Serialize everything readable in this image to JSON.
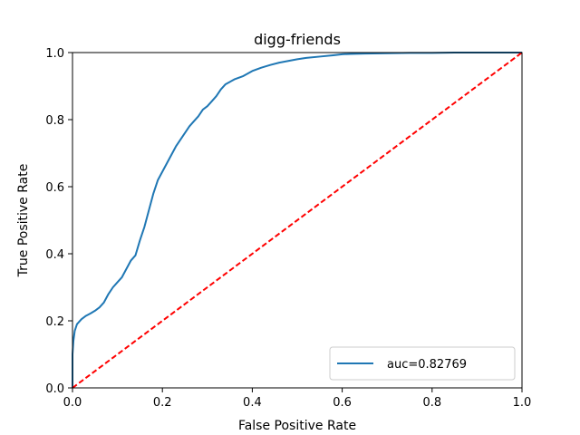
{
  "chart_data": {
    "type": "line",
    "title": "digg-friends",
    "xlabel": "False Positive Rate",
    "ylabel": "True Positive Rate",
    "xlim": [
      0.0,
      1.0
    ],
    "ylim": [
      0.0,
      1.0
    ],
    "x_ticks": [
      "0.0",
      "0.2",
      "0.4",
      "0.6",
      "0.8",
      "1.0"
    ],
    "y_ticks": [
      "0.0",
      "0.2",
      "0.4",
      "0.6",
      "0.8",
      "1.0"
    ],
    "grid": false,
    "legend_placement": "lower-right",
    "series": [
      {
        "name": "auc=0.82769",
        "color": "#1f77b4",
        "style": "solid",
        "x": [
          0.0,
          0.0,
          0.002,
          0.005,
          0.01,
          0.02,
          0.03,
          0.04,
          0.05,
          0.06,
          0.07,
          0.08,
          0.09,
          0.1,
          0.11,
          0.12,
          0.13,
          0.14,
          0.15,
          0.16,
          0.17,
          0.18,
          0.19,
          0.2,
          0.21,
          0.22,
          0.23,
          0.24,
          0.25,
          0.26,
          0.27,
          0.28,
          0.29,
          0.3,
          0.31,
          0.32,
          0.33,
          0.34,
          0.36,
          0.38,
          0.4,
          0.42,
          0.44,
          0.46,
          0.48,
          0.5,
          0.52,
          0.55,
          0.58,
          0.6,
          0.62,
          0.65,
          0.7,
          0.75,
          0.8,
          0.85,
          0.9,
          0.95,
          1.0
        ],
        "y": [
          0.0,
          0.1,
          0.14,
          0.17,
          0.19,
          0.205,
          0.215,
          0.222,
          0.23,
          0.24,
          0.255,
          0.28,
          0.3,
          0.315,
          0.33,
          0.355,
          0.38,
          0.395,
          0.44,
          0.48,
          0.53,
          0.58,
          0.62,
          0.645,
          0.67,
          0.695,
          0.72,
          0.74,
          0.76,
          0.78,
          0.795,
          0.81,
          0.83,
          0.84,
          0.855,
          0.87,
          0.89,
          0.905,
          0.92,
          0.93,
          0.945,
          0.955,
          0.963,
          0.97,
          0.975,
          0.98,
          0.984,
          0.988,
          0.992,
          0.995,
          0.996,
          0.997,
          0.998,
          0.999,
          0.999,
          1.0,
          1.0,
          1.0,
          1.0
        ]
      },
      {
        "name": "",
        "color": "#ff0000",
        "style": "dashed",
        "x": [
          0.0,
          1.0
        ],
        "y": [
          0.0,
          1.0
        ]
      }
    ]
  }
}
